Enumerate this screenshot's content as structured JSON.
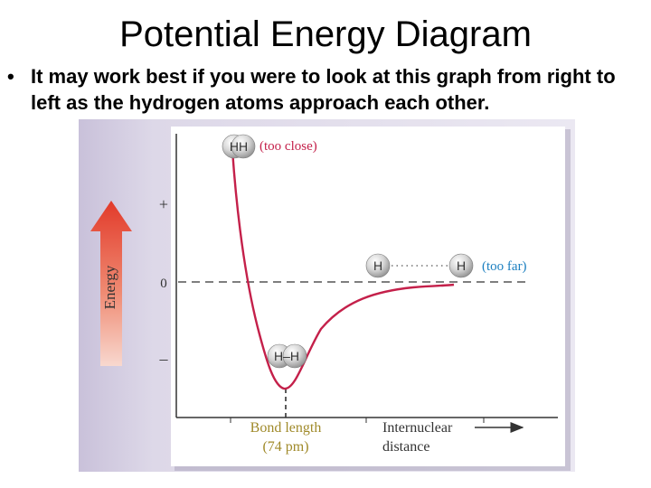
{
  "slide": {
    "title": "Potential Energy Diagram",
    "bullet": "It may work best if you were to look at this graph from right to left as the hydrogen atoms approach each other."
  },
  "diagram": {
    "energy_label": "Energy",
    "tick_plus": "+",
    "tick_zero": "0",
    "tick_minus": "–",
    "close_pair_label": "HH",
    "close_caption": "(too close)",
    "bonded_pair_label": "H–H",
    "far_atom_left": "H",
    "far_atom_right": "H",
    "far_caption": "(too far)",
    "bond_length_line1": "Bond length",
    "bond_length_line2": "(74 pm)",
    "internuclear_line1": "Internuclear",
    "internuclear_line2": "distance",
    "colors": {
      "curve": "#c4204a",
      "too_close": "#c4204a",
      "too_far": "#1b7fc0",
      "bond_length": "#a08a2a",
      "arrow_top": "#e23a2a",
      "arrow_bottom": "#f8d8cf",
      "frame_back": "#cfc8de"
    }
  }
}
